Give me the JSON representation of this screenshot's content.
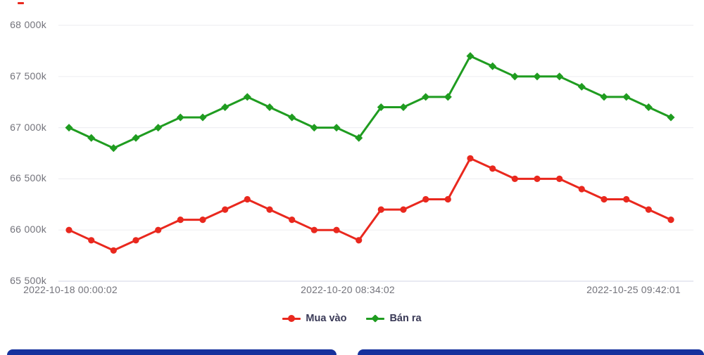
{
  "chart_data": {
    "type": "line",
    "title": "",
    "y_ticks": [
      "68 000k",
      "67 500k",
      "67 000k",
      "66 500k",
      "66 000k",
      "65 500k"
    ],
    "y_range": [
      65500,
      68000
    ],
    "grid": true,
    "grid_color": "#efeff2",
    "axis_line_color": "#d9dde9",
    "legend_position": "bottom",
    "x_axis_labels": [
      "2022-10-18 00:00:02",
      "2022-10-20 08:34:02",
      "2022-10-25 09:42:01"
    ],
    "series": [
      {
        "name": "Mua vào",
        "marker": "circle",
        "color": "#e9281e",
        "values": [
          66000,
          65900,
          65800,
          65900,
          66000,
          66100,
          66100,
          66200,
          66300,
          66200,
          66100,
          66000,
          66000,
          65900,
          66200,
          66200,
          66300,
          66300,
          66700,
          66600,
          66500,
          66500,
          66500,
          66400,
          66300,
          66300,
          66200,
          66100
        ]
      },
      {
        "name": "Bán ra",
        "marker": "diamond",
        "color": "#1f9c20",
        "values": [
          67000,
          66900,
          66800,
          66900,
          67000,
          67100,
          67100,
          67200,
          67300,
          67200,
          67100,
          67000,
          67000,
          66900,
          67200,
          67200,
          67300,
          67300,
          67700,
          67600,
          67500,
          67500,
          67500,
          67400,
          67300,
          67300,
          67200,
          67100
        ]
      }
    ]
  },
  "decor": {
    "red_dash_color": "#e9281e"
  },
  "footer": {
    "bar_color": "#16319d"
  }
}
